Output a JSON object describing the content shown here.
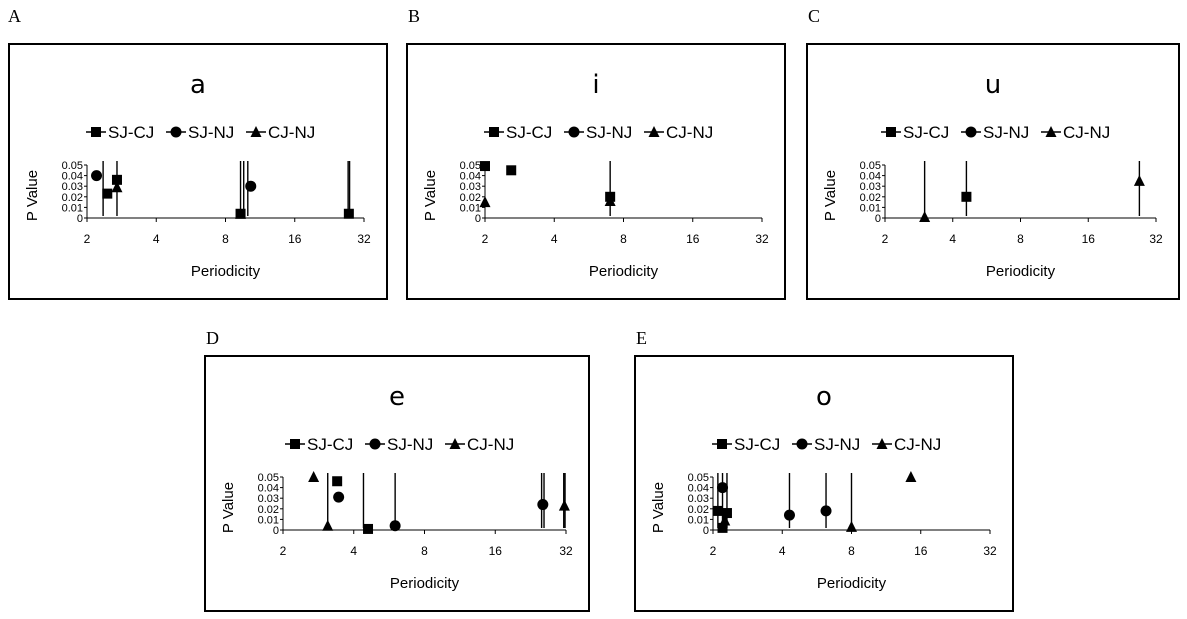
{
  "chart_data": [
    {
      "panel": "A",
      "title": "a",
      "type": "scatter",
      "xscale": "log2",
      "xlim": [
        2,
        32
      ],
      "ylim": [
        0,
        0.05
      ],
      "xticks": [
        2,
        4,
        8,
        16,
        32
      ],
      "yticks": [
        "0",
        "0.01",
        "0.02",
        "0.03",
        "0.04",
        "0.05"
      ],
      "xlabel": "Periodicity",
      "ylabel": "P Value",
      "series": [
        {
          "name": "SJ-CJ",
          "marker": "square",
          "points": [
            [
              2.45,
              0.023
            ],
            [
              2.7,
              0.036
            ],
            [
              9.3,
              0.004
            ],
            [
              27.5,
              0.004
            ]
          ]
        },
        {
          "name": "SJ-NJ",
          "marker": "circle",
          "points": [
            [
              2.2,
              0.04
            ],
            [
              10.3,
              0.03
            ]
          ]
        },
        {
          "name": "CJ-NJ",
          "marker": "triangle",
          "points": [
            [
              2.7,
              0.029
            ],
            [
              9.3,
              0.004
            ]
          ]
        }
      ],
      "lines": [
        [
          2.35,
          0.05
        ],
        [
          2.7,
          0.05
        ],
        [
          9.3,
          0.05
        ],
        [
          9.6,
          0.05
        ],
        [
          10.0,
          0.05
        ],
        [
          27.3,
          0.05
        ],
        [
          27.7,
          0.05
        ]
      ]
    },
    {
      "panel": "B",
      "title": "i",
      "type": "scatter",
      "xscale": "log2",
      "xlim": [
        2,
        32
      ],
      "ylim": [
        0,
        0.05
      ],
      "xticks": [
        2,
        4,
        8,
        16,
        32
      ],
      "yticks": [
        "0",
        "0.01",
        "0.02",
        "0.03",
        "0.04",
        "0.05"
      ],
      "xlabel": "Periodicity",
      "ylabel": "P Value",
      "series": [
        {
          "name": "SJ-CJ",
          "marker": "square",
          "points": [
            [
              2.0,
              0.049
            ],
            [
              2.6,
              0.045
            ],
            [
              7.0,
              0.02
            ]
          ]
        },
        {
          "name": "SJ-NJ",
          "marker": "circle",
          "points": []
        },
        {
          "name": "CJ-NJ",
          "marker": "triangle",
          "points": [
            [
              2.0,
              0.015
            ],
            [
              7.0,
              0.016
            ]
          ]
        }
      ],
      "lines": [
        [
          7.0,
          0.05
        ]
      ]
    },
    {
      "panel": "C",
      "title": "u",
      "type": "scatter",
      "xscale": "log2",
      "xlim": [
        2,
        32
      ],
      "ylim": [
        0,
        0.05
      ],
      "xticks": [
        2,
        4,
        8,
        16,
        32
      ],
      "yticks": [
        "0",
        "0.01",
        "0.02",
        "0.03",
        "0.04",
        "0.05"
      ],
      "xlabel": "Periodicity",
      "ylabel": "P Value",
      "series": [
        {
          "name": "SJ-CJ",
          "marker": "square",
          "points": [
            [
              4.6,
              0.02
            ]
          ]
        },
        {
          "name": "SJ-NJ",
          "marker": "circle",
          "points": []
        },
        {
          "name": "CJ-NJ",
          "marker": "triangle",
          "points": [
            [
              3.0,
              0.001
            ],
            [
              27.0,
              0.035
            ]
          ]
        }
      ],
      "lines": [
        [
          3.0,
          0.05
        ],
        [
          4.6,
          0.05
        ],
        [
          27.0,
          0.05
        ]
      ]
    },
    {
      "panel": "D",
      "title": "e",
      "type": "scatter",
      "xscale": "log2",
      "xlim": [
        2,
        32
      ],
      "ylim": [
        0,
        0.05
      ],
      "xticks": [
        2,
        4,
        8,
        16,
        32
      ],
      "yticks": [
        "0",
        "0.01",
        "0.02",
        "0.03",
        "0.04",
        "0.05"
      ],
      "xlabel": "Periodicity",
      "ylabel": "P Value",
      "series": [
        {
          "name": "SJ-CJ",
          "marker": "square",
          "points": [
            [
              3.4,
              0.046
            ],
            [
              4.6,
              0.001
            ]
          ]
        },
        {
          "name": "SJ-NJ",
          "marker": "circle",
          "points": [
            [
              3.45,
              0.031
            ],
            [
              6.0,
              0.004
            ],
            [
              25.5,
              0.024
            ]
          ]
        },
        {
          "name": "CJ-NJ",
          "marker": "triangle",
          "points": [
            [
              2.7,
              0.05
            ],
            [
              3.1,
              0.004
            ],
            [
              31.5,
              0.023
            ]
          ]
        }
      ],
      "lines": [
        [
          3.1,
          0.05
        ],
        [
          4.4,
          0.05
        ],
        [
          6.0,
          0.05
        ],
        [
          25.2,
          0.05
        ],
        [
          25.8,
          0.05
        ],
        [
          31.3,
          0.05
        ],
        [
          31.7,
          0.05
        ]
      ]
    },
    {
      "panel": "E",
      "title": "o",
      "type": "scatter",
      "xscale": "log2",
      "xlim": [
        2,
        32
      ],
      "ylim": [
        0,
        0.05
      ],
      "xticks": [
        2,
        4,
        8,
        16,
        32
      ],
      "yticks": [
        "0",
        "0.01",
        "0.02",
        "0.03",
        "0.04",
        "0.05"
      ],
      "xlabel": "Periodicity",
      "ylabel": "P Value",
      "series": [
        {
          "name": "SJ-CJ",
          "marker": "square",
          "points": [
            [
              2.1,
              0.018
            ],
            [
              2.2,
              0.002
            ],
            [
              2.3,
              0.016
            ]
          ]
        },
        {
          "name": "SJ-NJ",
          "marker": "circle",
          "points": [
            [
              2.2,
              0.04
            ],
            [
              4.3,
              0.014
            ],
            [
              6.2,
              0.018
            ]
          ]
        },
        {
          "name": "CJ-NJ",
          "marker": "triangle",
          "points": [
            [
              2.25,
              0.009
            ],
            [
              8.0,
              0.003
            ],
            [
              14.5,
              0.05
            ]
          ]
        }
      ],
      "lines": [
        [
          2.1,
          0.05
        ],
        [
          2.2,
          0.05
        ],
        [
          2.3,
          0.05
        ],
        [
          4.3,
          0.05
        ],
        [
          6.2,
          0.05
        ],
        [
          8.0,
          0.05
        ]
      ]
    }
  ]
}
